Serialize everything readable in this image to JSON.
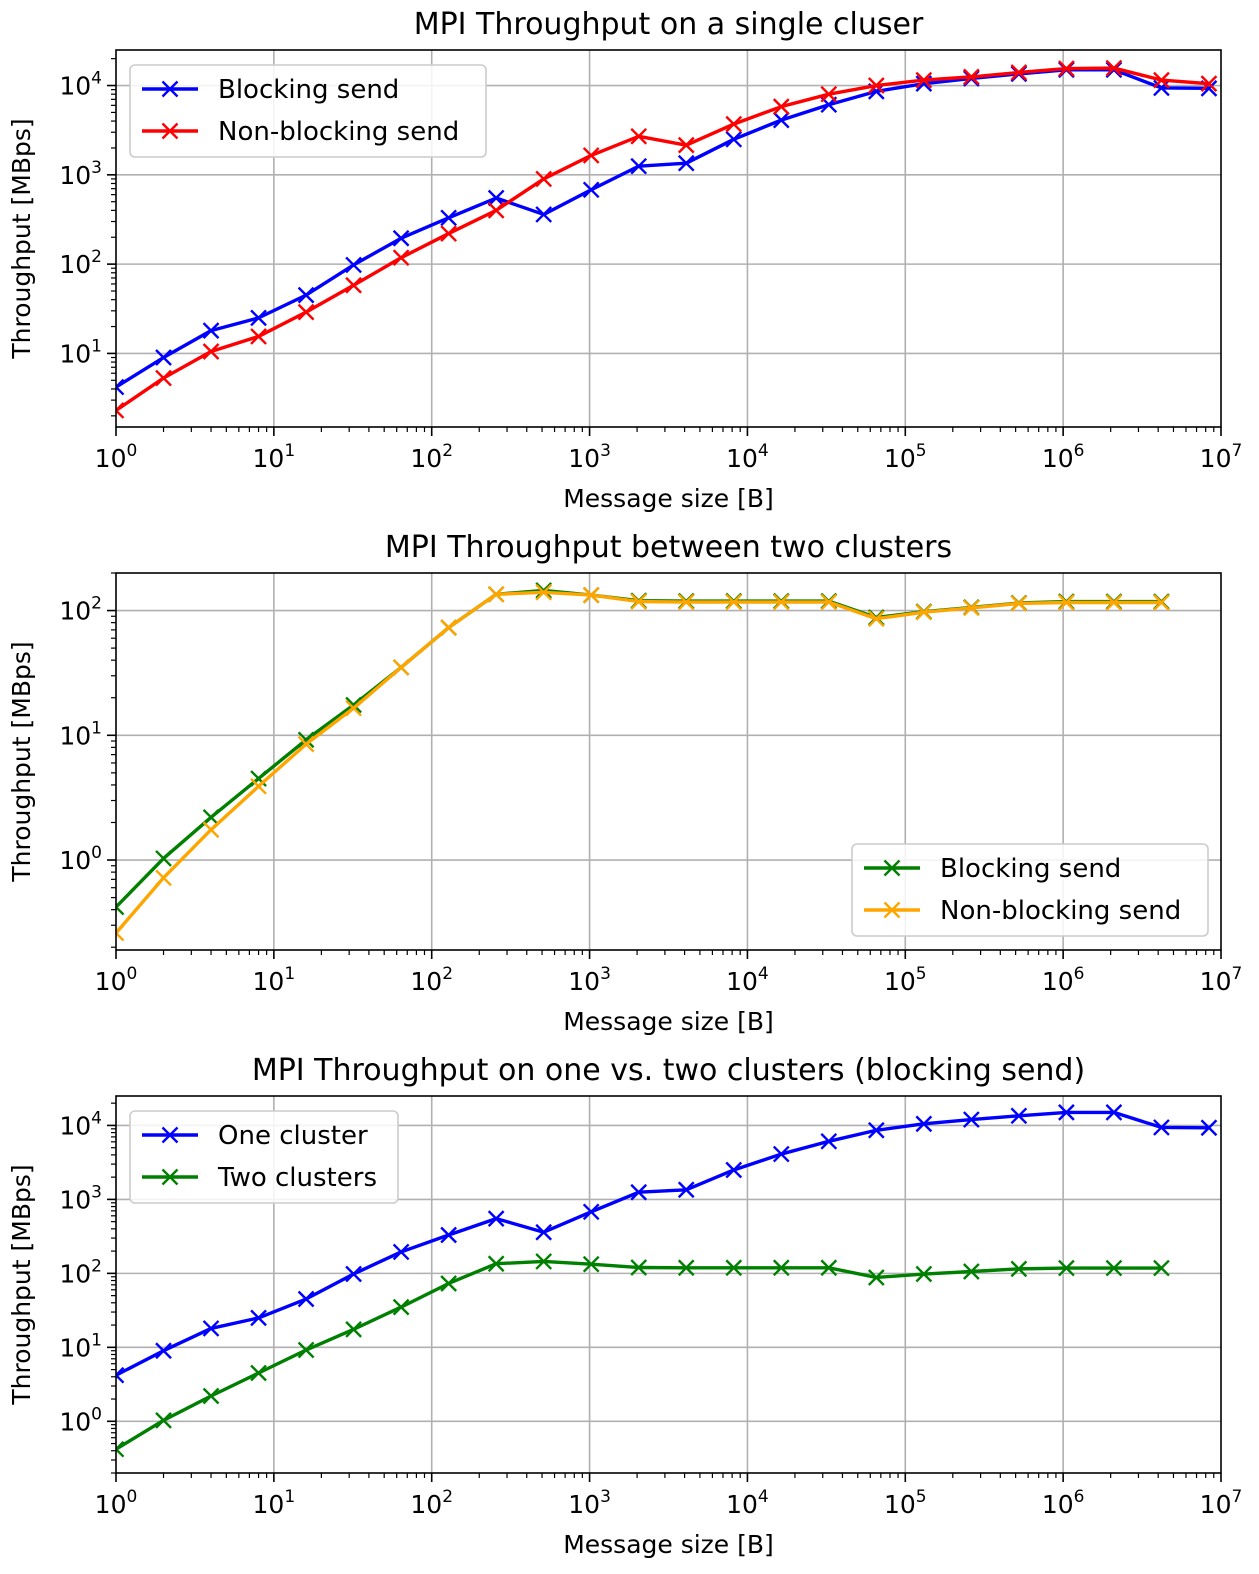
{
  "figure": {
    "background": "#ffffff"
  },
  "chart_data": [
    {
      "type": "line",
      "title": "MPI Throughput on a single cluser",
      "xlabel": "Message size [B]",
      "ylabel": "Throughput [MBps]",
      "xscale": "log",
      "yscale": "log",
      "xlim": [
        1,
        10000000
      ],
      "ylim": [
        1.5,
        25000
      ],
      "xticks": [
        {
          "base": "10",
          "exp": "0"
        },
        {
          "base": "10",
          "exp": "1"
        },
        {
          "base": "10",
          "exp": "2"
        },
        {
          "base": "10",
          "exp": "3"
        },
        {
          "base": "10",
          "exp": "4"
        },
        {
          "base": "10",
          "exp": "5"
        },
        {
          "base": "10",
          "exp": "6"
        },
        {
          "base": "10",
          "exp": "7"
        }
      ],
      "yticks": [
        {
          "base": "10",
          "exp": "1"
        },
        {
          "base": "10",
          "exp": "2"
        },
        {
          "base": "10",
          "exp": "3"
        },
        {
          "base": "10",
          "exp": "4"
        }
      ],
      "grid": true,
      "legend_position": "upper-left",
      "x": [
        1,
        2,
        4,
        8,
        16,
        32,
        64,
        128,
        256,
        512,
        1024,
        2048,
        4096,
        8192,
        16384,
        32768,
        65536,
        131072,
        262144,
        524288,
        1048576,
        2097152,
        4194304,
        8388608
      ],
      "series": [
        {
          "name": "Blocking send",
          "color": "#0000ff",
          "marker": "x",
          "values": [
            4.2,
            9,
            18,
            25,
            45,
            98,
            195,
            330,
            550,
            360,
            680,
            1250,
            1350,
            2500,
            4100,
            6100,
            8600,
            10500,
            12000,
            13500,
            15000,
            15000,
            9400,
            9300
          ]
        },
        {
          "name": "Non-blocking send",
          "color": "#ff0000",
          "marker": "x",
          "values": [
            2.3,
            5.3,
            10.5,
            15.5,
            29,
            58,
            118,
            220,
            400,
            900,
            1650,
            2700,
            2150,
            3700,
            5800,
            8000,
            10000,
            11500,
            12500,
            14000,
            15500,
            15700,
            11500,
            10500
          ]
        }
      ]
    },
    {
      "type": "line",
      "title": "MPI Throughput between two clusters",
      "xlabel": "Message size [B]",
      "ylabel": "Throughput [MBps]",
      "xscale": "log",
      "yscale": "log",
      "xlim": [
        1,
        10000000
      ],
      "ylim": [
        0.19,
        200
      ],
      "xticks": [
        {
          "base": "10",
          "exp": "0"
        },
        {
          "base": "10",
          "exp": "1"
        },
        {
          "base": "10",
          "exp": "2"
        },
        {
          "base": "10",
          "exp": "3"
        },
        {
          "base": "10",
          "exp": "4"
        },
        {
          "base": "10",
          "exp": "5"
        },
        {
          "base": "10",
          "exp": "6"
        },
        {
          "base": "10",
          "exp": "7"
        }
      ],
      "yticks": [
        {
          "base": "10",
          "exp": "0"
        },
        {
          "base": "10",
          "exp": "1"
        },
        {
          "base": "10",
          "exp": "2"
        }
      ],
      "grid": true,
      "legend_position": "lower-right",
      "x": [
        1,
        2,
        4,
        8,
        16,
        32,
        64,
        128,
        256,
        512,
        1024,
        2048,
        4096,
        8192,
        16384,
        32768,
        65536,
        131072,
        262144,
        524288,
        1048576,
        2097152,
        4194304
      ],
      "series": [
        {
          "name": "Blocking send",
          "color": "#008000",
          "marker": "x",
          "values": [
            0.42,
            1.03,
            2.2,
            4.5,
            9.2,
            17.5,
            35,
            73,
            135,
            145,
            133,
            120,
            119,
            119,
            119,
            119,
            88,
            98,
            106,
            115,
            118,
            118,
            118
          ]
        },
        {
          "name": "Non-blocking send",
          "color": "#ffa500",
          "marker": "x",
          "values": [
            0.26,
            0.72,
            1.75,
            3.9,
            8.5,
            16.5,
            35,
            73,
            135,
            140,
            133,
            118,
            117,
            117,
            117,
            117,
            86,
            97,
            105,
            114,
            116,
            116,
            116
          ]
        }
      ]
    },
    {
      "type": "line",
      "title": "MPI Throughput on one vs. two clusters (blocking send)",
      "xlabel": "Message size [B]",
      "ylabel": "Throughput [MBps]",
      "xscale": "log",
      "yscale": "log",
      "xlim": [
        1,
        10000000
      ],
      "ylim": [
        0.2,
        25000
      ],
      "xticks": [
        {
          "base": "10",
          "exp": "0"
        },
        {
          "base": "10",
          "exp": "1"
        },
        {
          "base": "10",
          "exp": "2"
        },
        {
          "base": "10",
          "exp": "3"
        },
        {
          "base": "10",
          "exp": "4"
        },
        {
          "base": "10",
          "exp": "5"
        },
        {
          "base": "10",
          "exp": "6"
        },
        {
          "base": "10",
          "exp": "7"
        }
      ],
      "yticks": [
        {
          "base": "10",
          "exp": "0"
        },
        {
          "base": "10",
          "exp": "1"
        },
        {
          "base": "10",
          "exp": "2"
        },
        {
          "base": "10",
          "exp": "3"
        },
        {
          "base": "10",
          "exp": "4"
        }
      ],
      "grid": true,
      "legend_position": "upper-left",
      "series": [
        {
          "name": "One cluster",
          "color": "#0000ff",
          "marker": "x",
          "x": [
            1,
            2,
            4,
            8,
            16,
            32,
            64,
            128,
            256,
            512,
            1024,
            2048,
            4096,
            8192,
            16384,
            32768,
            65536,
            131072,
            262144,
            524288,
            1048576,
            2097152,
            4194304,
            8388608
          ],
          "values": [
            4.2,
            9,
            18,
            25,
            45,
            98,
            195,
            330,
            550,
            360,
            680,
            1250,
            1350,
            2500,
            4100,
            6100,
            8600,
            10500,
            12000,
            13500,
            15000,
            15000,
            9400,
            9300
          ]
        },
        {
          "name": "Two clusters",
          "color": "#008000",
          "marker": "x",
          "x": [
            1,
            2,
            4,
            8,
            16,
            32,
            64,
            128,
            256,
            512,
            1024,
            2048,
            4096,
            8192,
            16384,
            32768,
            65536,
            131072,
            262144,
            524288,
            1048576,
            2097152,
            4194304
          ],
          "values": [
            0.42,
            1.03,
            2.2,
            4.5,
            9.2,
            17.5,
            35,
            73,
            135,
            145,
            133,
            120,
            119,
            119,
            119,
            119,
            88,
            98,
            106,
            115,
            118,
            118,
            118
          ]
        }
      ]
    }
  ]
}
